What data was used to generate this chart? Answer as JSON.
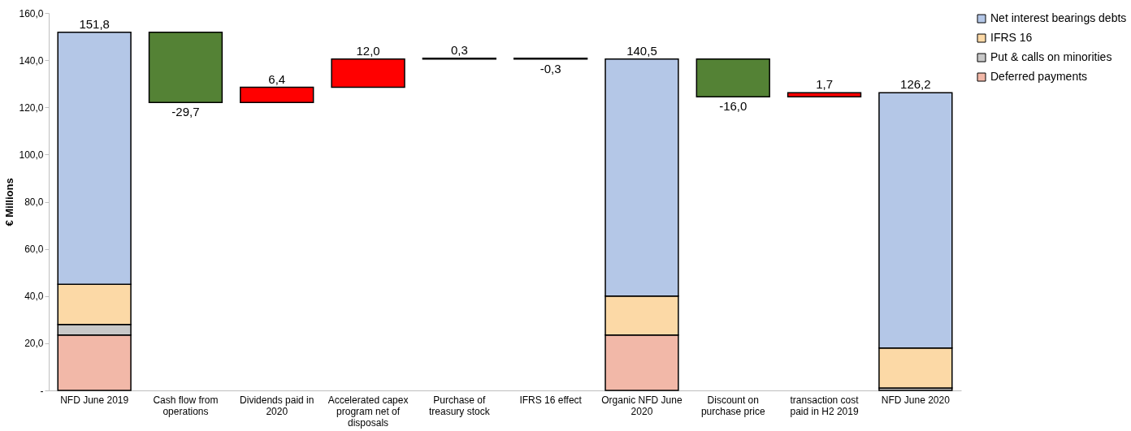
{
  "chart_data": {
    "type": "bar",
    "ylabel": "€ Millions",
    "stacked": true,
    "legend": "right",
    "grid": false,
    "categories": [
      "NFD June 2019",
      "Cash flow from operations",
      "Dividends paid in 2020",
      "Accelerated capex program net of disposals",
      "Purchase of treasury stock",
      "IFRS 16 effect",
      "Organic NFD June 2020",
      "Discount on purchase price",
      "transaction cost paid in H2 2019",
      "NFD June 2020"
    ],
    "ylim": [
      0,
      160
    ],
    "yticks": [
      {
        "value": 0,
        "label": "-"
      },
      {
        "value": 20,
        "label": "20,0"
      },
      {
        "value": 40,
        "label": "40,0"
      },
      {
        "value": 60,
        "label": "60,0"
      },
      {
        "value": 80,
        "label": "80,0"
      },
      {
        "value": 100,
        "label": "100,0"
      },
      {
        "value": 120,
        "label": "120,0"
      },
      {
        "value": 140,
        "label": "140,0"
      },
      {
        "value": 160,
        "label": "160,0"
      }
    ],
    "series": [
      {
        "name": "Deferred payments",
        "color": "#f2b8a8",
        "values": [
          23.5,
          null,
          null,
          null,
          null,
          null,
          23.5,
          null,
          null,
          null
        ]
      },
      {
        "name": "Put & calls on minorities",
        "color": "#c8c8c8",
        "values": [
          4.5,
          null,
          null,
          null,
          null,
          null,
          null,
          null,
          null,
          1.0
        ]
      },
      {
        "name": "IFRS 16",
        "color": "#fcd9a6",
        "values": [
          17.0,
          null,
          null,
          null,
          null,
          null,
          16.5,
          null,
          null,
          17.0
        ]
      },
      {
        "name": "Net interest bearings debts",
        "color": "#b4c7e7",
        "values": [
          106.8,
          null,
          null,
          null,
          null,
          null,
          100.5,
          null,
          null,
          108.2
        ]
      },
      {
        "type": "bar",
        "values": [
          null,
          -29.7,
          6.4,
          12.0,
          0.3,
          -0.3,
          null,
          -16.0,
          1.7,
          null
        ],
        "base": [
          null,
          151.8,
          122.1,
          128.5,
          140.5,
          140.8,
          null,
          140.5,
          124.5,
          null
        ],
        "colors": [
          null,
          "#548235",
          "#ff0000",
          "#ff0000",
          "#ff0000",
          "#ff0000",
          null,
          "#548235",
          "#ff0000",
          null
        ],
        "value_labels": [
          null,
          "-29,7",
          "6,4",
          "12,0",
          "0,3",
          "-0,3",
          null,
          "-16,0",
          "1,7",
          null
        ]
      }
    ],
    "totals": [
      "151,8",
      null,
      null,
      null,
      null,
      null,
      "140,5",
      null,
      null,
      "126,2"
    ]
  }
}
